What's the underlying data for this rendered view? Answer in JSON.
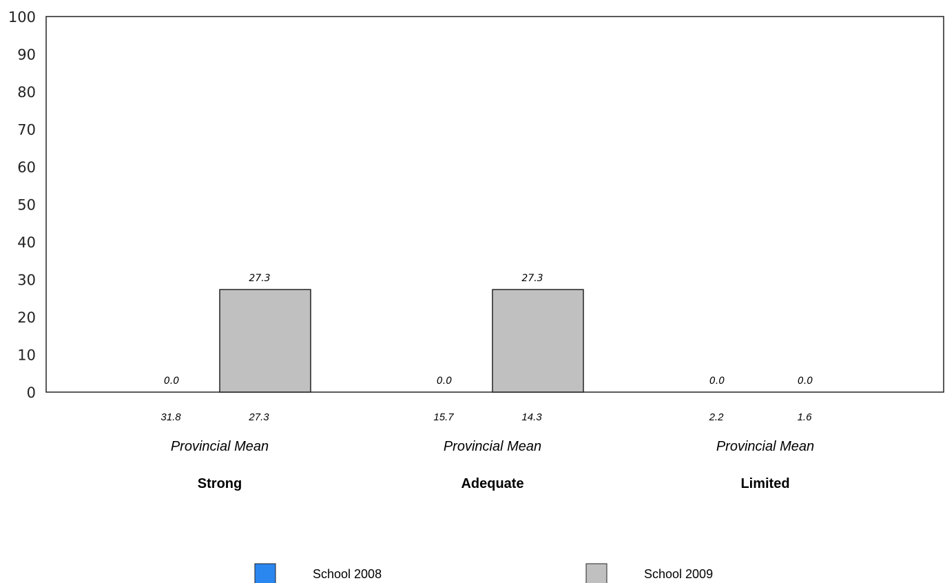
{
  "chart_data": {
    "type": "bar",
    "categories": [
      "Strong",
      "Adequate",
      "Limited"
    ],
    "series": [
      {
        "name": "School  2008",
        "values": [
          0.0,
          0.0,
          0.0
        ],
        "color": "#2b87f0"
      },
      {
        "name": "School  2009",
        "values": [
          27.3,
          27.3,
          0.0
        ],
        "color": "#c0c0c0"
      }
    ],
    "data_labels": [
      [
        "0.0",
        "0.0",
        "0.0"
      ],
      [
        "27.3",
        "27.3",
        "0.0"
      ]
    ],
    "provincial_mean": {
      "label": "Provincial Mean",
      "values": [
        [
          "31.8",
          "27.3"
        ],
        [
          "15.7",
          "14.3"
        ],
        [
          "2.2",
          "1.6"
        ]
      ]
    },
    "ylim": [
      0,
      100
    ],
    "yticks": [
      "0",
      "10",
      "20",
      "30",
      "40",
      "50",
      "60",
      "70",
      "80",
      "90",
      "100"
    ],
    "grid": false,
    "legend_position": "bottom"
  }
}
